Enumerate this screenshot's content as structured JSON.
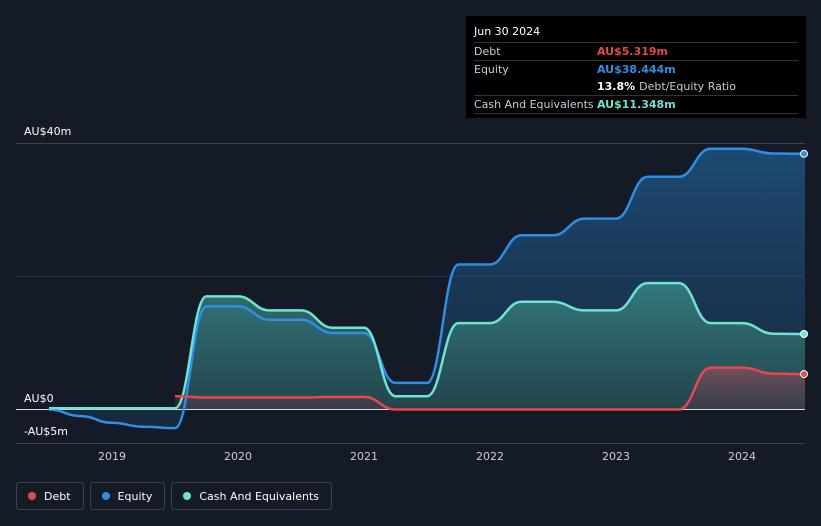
{
  "tooltip": {
    "date": "Jun 30 2024",
    "debt_label": "Debt",
    "debt_value": "AU$5.319m",
    "equity_label": "Equity",
    "equity_value": "AU$38.444m",
    "ratio_pct": "13.8%",
    "ratio_label": "Debt/Equity Ratio",
    "cash_label": "Cash And Equivalents",
    "cash_value": "AU$11.348m"
  },
  "legend": {
    "debt": "Debt",
    "equity": "Equity",
    "cash": "Cash And Equivalents"
  },
  "colors": {
    "debt": "#e5484d",
    "equity": "#2d8fe6",
    "cash": "#6fe3d3",
    "background": "#151b26"
  },
  "chart_data": {
    "type": "area",
    "y_tick_labels": [
      "AU$40m",
      "AU$0",
      "-AU$5m"
    ],
    "x_ticks": [
      "2019",
      "2020",
      "2021",
      "2022",
      "2023",
      "2024"
    ],
    "ylim": [
      -5,
      40
    ],
    "xlim": [
      2018.25,
      2024.5
    ],
    "grid": true,
    "legend_position": "bottom-left",
    "series": [
      {
        "name": "Equity",
        "points": [
          [
            2018.5,
            0.0
          ],
          [
            2018.75,
            -1.0
          ],
          [
            2019.0,
            -2.0
          ],
          [
            2019.25,
            -2.6
          ],
          [
            2019.5,
            -2.8
          ],
          [
            2019.75,
            15.5
          ],
          [
            2020.0,
            15.5
          ],
          [
            2020.25,
            13.5
          ],
          [
            2020.5,
            13.5
          ],
          [
            2020.75,
            11.5
          ],
          [
            2021.0,
            11.5
          ],
          [
            2021.25,
            4.0
          ],
          [
            2021.5,
            4.0
          ],
          [
            2021.75,
            21.8
          ],
          [
            2022.0,
            21.8
          ],
          [
            2022.25,
            26.2
          ],
          [
            2022.5,
            26.2
          ],
          [
            2022.75,
            28.7
          ],
          [
            2023.0,
            28.7
          ],
          [
            2023.25,
            35.0
          ],
          [
            2023.5,
            35.0
          ],
          [
            2023.75,
            39.2
          ],
          [
            2024.0,
            39.2
          ],
          [
            2024.25,
            38.5
          ],
          [
            2024.5,
            38.444
          ]
        ]
      },
      {
        "name": "Cash And Equivalents",
        "points": [
          [
            2018.5,
            0.2
          ],
          [
            2018.75,
            0.2
          ],
          [
            2019.0,
            0.2
          ],
          [
            2019.25,
            0.2
          ],
          [
            2019.5,
            0.2
          ],
          [
            2019.75,
            17.0
          ],
          [
            2020.0,
            17.0
          ],
          [
            2020.25,
            14.9
          ],
          [
            2020.5,
            14.9
          ],
          [
            2020.75,
            12.3
          ],
          [
            2021.0,
            12.3
          ],
          [
            2021.25,
            2.0
          ],
          [
            2021.5,
            2.0
          ],
          [
            2021.75,
            13.0
          ],
          [
            2022.0,
            13.0
          ],
          [
            2022.25,
            16.2
          ],
          [
            2022.5,
            16.2
          ],
          [
            2022.75,
            14.9
          ],
          [
            2023.0,
            14.9
          ],
          [
            2023.25,
            19.0
          ],
          [
            2023.5,
            19.0
          ],
          [
            2023.75,
            13.0
          ],
          [
            2024.0,
            13.0
          ],
          [
            2024.25,
            11.4
          ],
          [
            2024.5,
            11.348
          ]
        ]
      },
      {
        "name": "Debt",
        "points": [
          [
            2019.5,
            2.0
          ],
          [
            2019.75,
            1.8
          ],
          [
            2020.0,
            1.8
          ],
          [
            2020.25,
            1.8
          ],
          [
            2020.5,
            1.8
          ],
          [
            2020.75,
            1.9
          ],
          [
            2021.0,
            1.9
          ],
          [
            2021.25,
            0.0
          ],
          [
            2021.5,
            0.0
          ],
          [
            2021.75,
            0.0
          ],
          [
            2022.0,
            0.0
          ],
          [
            2022.25,
            0.0
          ],
          [
            2022.5,
            0.0
          ],
          [
            2022.75,
            0.0
          ],
          [
            2023.0,
            0.0
          ],
          [
            2023.25,
            0.0
          ],
          [
            2023.5,
            0.0
          ],
          [
            2023.75,
            6.3
          ],
          [
            2024.0,
            6.3
          ],
          [
            2024.25,
            5.4
          ],
          [
            2024.5,
            5.319
          ]
        ]
      }
    ]
  }
}
